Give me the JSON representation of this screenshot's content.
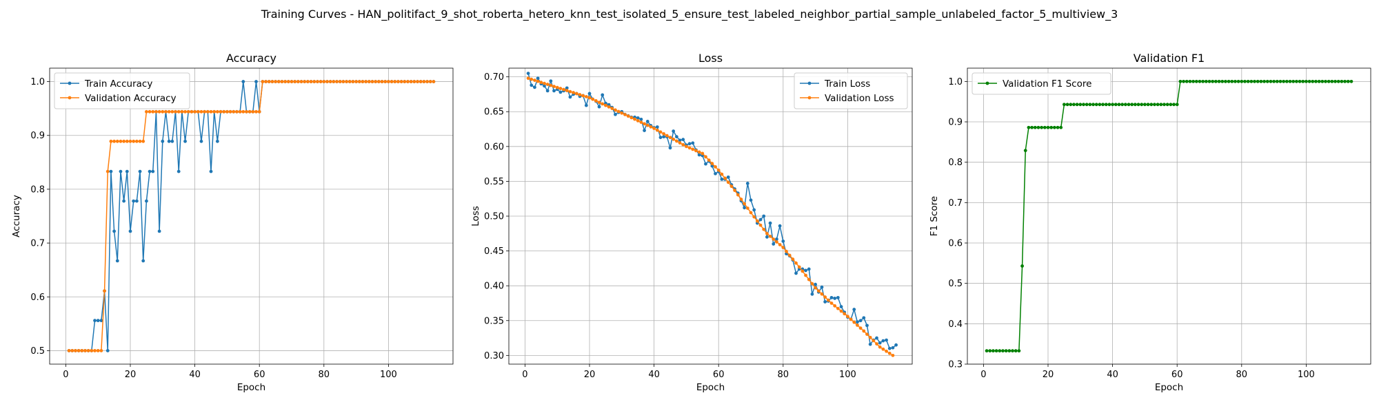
{
  "figure": {
    "title": "Training Curves - HAN_politifact_9_shot_roberta_hetero_knn_test_isolated_5_ensure_test_labeled_neighbor_partial_sample_unlabeled_factor_5_multiview_3"
  },
  "chart_data": [
    {
      "type": "line",
      "title": "Accuracy",
      "xlabel": "Epoch",
      "ylabel": "Accuracy",
      "xlim": [
        -5,
        120
      ],
      "ylim": [
        0.475,
        1.025
      ],
      "xticks": [
        0,
        20,
        40,
        60,
        80,
        100
      ],
      "yticks": [
        0.5,
        0.6,
        0.7,
        0.8,
        0.9,
        1.0
      ],
      "ytick_labels": [
        "0.5",
        "0.6",
        "0.7",
        "0.8",
        "0.9",
        "1.0"
      ],
      "grid": true,
      "legend_position": "upper left",
      "series": [
        {
          "name": "Train Accuracy",
          "color": "#1f77b4",
          "segments": [
            {
              "type": "list",
              "values": [
                0.5,
                0.5,
                0.5,
                0.5,
                0.5,
                0.5,
                0.5,
                0.5,
                0.556,
                0.556,
                0.556,
                0.611,
                0.5,
                0.833,
                0.722,
                0.667,
                0.833,
                0.778,
                0.833,
                0.722,
                0.778,
                0.778,
                0.833,
                0.667,
                0.778,
                0.833,
                0.833,
                0.944,
                0.722,
                0.889,
                0.944,
                0.889,
                0.889,
                0.944,
                0.833,
                0.944,
                0.889,
                0.944,
                0.944,
                0.944,
                0.944,
                0.889,
                0.944,
                0.944,
                0.833,
                0.944,
                0.889,
                0.944,
                0.944,
                0.944,
                0.944,
                0.944,
                0.944,
                0.944,
                1.0,
                0.944,
                0.944,
                0.944,
                1.0,
                0.944
              ]
            },
            {
              "type": "const",
              "value": 1.0,
              "count": 54
            }
          ]
        },
        {
          "name": "Validation Accuracy",
          "color": "#ff7f0e",
          "segments": [
            {
              "type": "const",
              "value": 0.5,
              "count": 11
            },
            {
              "type": "list",
              "values": [
                0.611,
                0.833
              ]
            },
            {
              "type": "const",
              "value": 0.889,
              "count": 11
            },
            {
              "type": "const",
              "value": 0.944,
              "count": 36
            },
            {
              "type": "const",
              "value": 1.0,
              "count": 54
            }
          ]
        }
      ]
    },
    {
      "type": "line",
      "title": "Loss",
      "xlabel": "Epoch",
      "ylabel": "Loss",
      "xlim": [
        -5,
        120
      ],
      "ylim": [
        0.2875,
        0.7125
      ],
      "xticks": [
        0,
        20,
        40,
        60,
        80,
        100
      ],
      "yticks": [
        0.3,
        0.35,
        0.4,
        0.45,
        0.5,
        0.55,
        0.6,
        0.65,
        0.7
      ],
      "ytick_labels": [
        "0.30",
        "0.35",
        "0.40",
        "0.45",
        "0.50",
        "0.55",
        "0.60",
        "0.65",
        "0.70"
      ],
      "grid": true,
      "legend_position": "upper right",
      "series": [
        {
          "name": "Train Loss",
          "color": "#1f77b4",
          "segments": [
            {
              "type": "list",
              "values": [
                0.705,
                0.688,
                0.685,
                0.698,
                0.69,
                0.687,
                0.68,
                0.694,
                0.68,
                0.682,
                0.678,
                0.68,
                0.684,
                0.671,
                0.675,
                0.676,
                0.672,
                0.673,
                0.659,
                0.676,
                0.668,
                0.665,
                0.657,
                0.674,
                0.662,
                0.66,
                0.656,
                0.646,
                0.649,
                0.65,
                0.646,
                0.644,
                0.642,
                0.642,
                0.641,
                0.639,
                0.623,
                0.636,
                0.63,
                0.627,
                0.628,
                0.613,
                0.614,
                0.614,
                0.598,
                0.622,
                0.614,
                0.609,
                0.61,
                0.602,
                0.604,
                0.605,
                0.595,
                0.588,
                0.587,
                0.575,
                0.579,
                0.572,
                0.561,
                0.564,
                0.553,
                0.553,
                0.556,
                0.545,
                0.539,
                0.533,
                0.522,
                0.512,
                0.547,
                0.523,
                0.509,
                0.49,
                0.495,
                0.5,
                0.47,
                0.49,
                0.46,
                0.467,
                0.486,
                0.464,
                0.446,
                0.443,
                0.437,
                0.418,
                0.424,
                0.424,
                0.422,
                0.424,
                0.388,
                0.402,
                0.391,
                0.398,
                0.377,
                0.378,
                0.383,
                0.382,
                0.383,
                0.37,
                0.362,
                0.355,
                0.352,
                0.366,
                0.348,
                0.35,
                0.354,
                0.343,
                0.316,
                0.322,
                0.325,
                0.318,
                0.321,
                0.322,
                0.31,
                0.311,
                0.315
              ]
            }
          ]
        },
        {
          "name": "Validation Loss",
          "color": "#ff7f0e",
          "segments": [
            {
              "type": "poly",
              "count": 114,
              "points": [
                [
                  1,
                  0.698
                ],
                [
                  20,
                  0.67
                ],
                [
                  30,
                  0.648
                ],
                [
                  40,
                  0.626
                ],
                [
                  50,
                  0.6
                ],
                [
                  55,
                  0.59
                ],
                [
                  60,
                  0.566
                ],
                [
                  65,
                  0.537
                ],
                [
                  70,
                  0.505
                ],
                [
                  75,
                  0.475
                ],
                [
                  80,
                  0.455
                ],
                [
                  85,
                  0.427
                ],
                [
                  90,
                  0.397
                ],
                [
                  95,
                  0.375
                ],
                [
                  100,
                  0.356
                ],
                [
                  105,
                  0.335
                ],
                [
                  110,
                  0.312
                ],
                [
                  114,
                  0.3
                ]
              ]
            }
          ]
        }
      ]
    },
    {
      "type": "line",
      "title": "Validation F1",
      "xlabel": "Epoch",
      "ylabel": "F1 Score",
      "xlim": [
        -5,
        120
      ],
      "ylim": [
        0.3,
        1.033
      ],
      "xticks": [
        0,
        20,
        40,
        60,
        80,
        100
      ],
      "yticks": [
        0.3,
        0.4,
        0.5,
        0.6,
        0.7,
        0.8,
        0.9,
        1.0
      ],
      "ytick_labels": [
        "0.3",
        "0.4",
        "0.5",
        "0.6",
        "0.7",
        "0.8",
        "0.9",
        "1.0"
      ],
      "grid": true,
      "legend_position": "upper left",
      "series": [
        {
          "name": "Validation F1 Score",
          "color": "#008000",
          "segments": [
            {
              "type": "const",
              "value": 0.333,
              "count": 11
            },
            {
              "type": "list",
              "values": [
                0.543,
                0.829
              ]
            },
            {
              "type": "const",
              "value": 0.886,
              "count": 11
            },
            {
              "type": "const",
              "value": 0.943,
              "count": 36
            },
            {
              "type": "const",
              "value": 1.0,
              "count": 54
            }
          ]
        }
      ]
    }
  ]
}
